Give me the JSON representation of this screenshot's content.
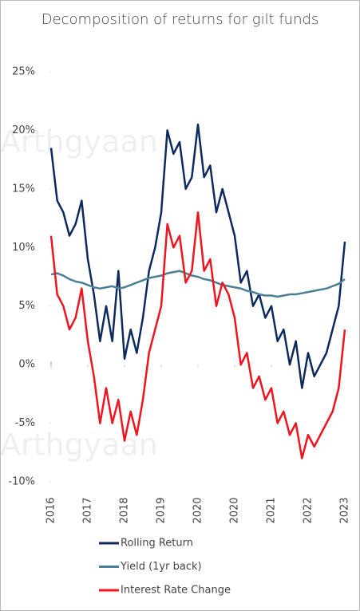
{
  "chart_data": {
    "type": "line",
    "title": "Decomposition of returns for gilt funds",
    "watermark": "Arthgyaan",
    "x": [
      0,
      1,
      2,
      3,
      4,
      5,
      6,
      7,
      8,
      9,
      10,
      11,
      12,
      13,
      14,
      15,
      16,
      17,
      18,
      19,
      20,
      21,
      22,
      23,
      24,
      25,
      26,
      27,
      28,
      29,
      30,
      31,
      32,
      33,
      34,
      35,
      36,
      37,
      38,
      39,
      40,
      41,
      42,
      43,
      44,
      45,
      46,
      47,
      48
    ],
    "xlim": [
      0,
      48
    ],
    "xticks": [
      {
        "value": 0,
        "label": "2016"
      },
      {
        "value": 6,
        "label": "2017"
      },
      {
        "value": 12,
        "label": "2018"
      },
      {
        "value": 18,
        "label": "2019"
      },
      {
        "value": 24,
        "label": "2020"
      },
      {
        "value": 30,
        "label": "2020"
      },
      {
        "value": 36,
        "label": "2021"
      },
      {
        "value": 42,
        "label": "2022"
      },
      {
        "value": 48,
        "label": "2023"
      }
    ],
    "ylim": [
      -10,
      25
    ],
    "yticks": [
      {
        "value": -10,
        "label": "-10%"
      },
      {
        "value": -5,
        "label": "-5%"
      },
      {
        "value": 0,
        "label": "0%"
      },
      {
        "value": 5,
        "label": "5%"
      },
      {
        "value": 10,
        "label": "10%"
      },
      {
        "value": 15,
        "label": "15%"
      },
      {
        "value": 20,
        "label": "20%"
      },
      {
        "value": 25,
        "label": "25%"
      }
    ],
    "legend": "bottom",
    "series": [
      {
        "name": "Rolling Return",
        "color": "#0d2a5e",
        "values": [
          18.5,
          14,
          13,
          11,
          12,
          14,
          9,
          6,
          2,
          5,
          2,
          8,
          0.5,
          3,
          1,
          4,
          8,
          10,
          13,
          20,
          18,
          19,
          15,
          16,
          20.5,
          16,
          17,
          13,
          15,
          13,
          11,
          7,
          8,
          5,
          6,
          4,
          5,
          2,
          3,
          0,
          2,
          -2,
          1,
          -1,
          0,
          1,
          3,
          5,
          10.5
        ]
      },
      {
        "name": "Yield (1yr back)",
        "color": "#4a7f95",
        "values": [
          7.7,
          7.8,
          7.6,
          7.3,
          7.1,
          7.0,
          6.8,
          6.6,
          6.5,
          6.6,
          6.7,
          6.5,
          6.6,
          6.8,
          7.0,
          7.2,
          7.4,
          7.5,
          7.6,
          7.8,
          7.9,
          8.0,
          7.8,
          7.6,
          7.5,
          7.3,
          7.2,
          7.0,
          6.8,
          6.7,
          6.6,
          6.5,
          6.3,
          6.2,
          6.0,
          5.9,
          5.9,
          5.8,
          5.9,
          6.0,
          6.0,
          6.1,
          6.2,
          6.3,
          6.4,
          6.5,
          6.7,
          6.9,
          7.3
        ]
      },
      {
        "name": "Interest Rate Change",
        "color": "#f0141e",
        "values": [
          11,
          6,
          5,
          3,
          4,
          6.5,
          2,
          -1,
          -5,
          -2,
          -5,
          -3,
          -6.5,
          -4,
          -6,
          -3,
          1,
          3,
          5,
          12,
          10,
          11,
          7,
          8,
          13,
          8,
          9,
          5,
          7,
          6,
          4,
          0,
          1,
          -2,
          -1,
          -3,
          -2,
          -5,
          -4,
          -6,
          -5,
          -8,
          -6,
          -7,
          -6,
          -5,
          -4,
          -2,
          3
        ]
      }
    ]
  }
}
